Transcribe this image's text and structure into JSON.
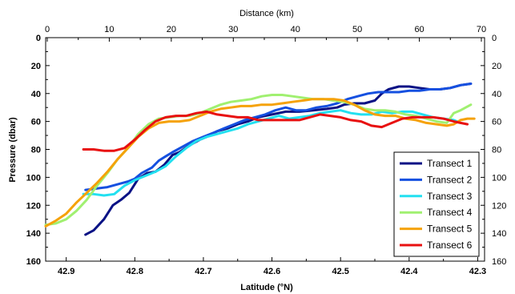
{
  "chart_data": {
    "type": "line",
    "top_axis": {
      "label": "Distance (km)",
      "range": [
        0,
        70
      ],
      "ticks": [
        0,
        10,
        20,
        30,
        40,
        50,
        60,
        70
      ]
    },
    "xlabel": "Latitude (°N)",
    "xlim": [
      42.93,
      42.29
    ],
    "xticks": [
      42.9,
      42.8,
      42.7,
      42.6,
      42.5,
      42.4,
      42.3
    ],
    "ylabel": "Pressure (dbar)",
    "ylim": [
      0,
      160
    ],
    "y_inverted": true,
    "yticks": [
      0,
      20,
      40,
      60,
      80,
      100,
      120,
      140,
      160
    ],
    "right_yticks": [
      0,
      20,
      40,
      60,
      80,
      100,
      120,
      140,
      160
    ],
    "legend_position": "bottom-right",
    "grid": false,
    "series": [
      {
        "name": "Transect 1",
        "color": "#0a1285",
        "x": [
          42.872,
          42.86,
          42.845,
          42.832,
          42.82,
          42.808,
          42.795,
          42.782,
          42.77,
          42.757,
          42.745,
          42.735,
          42.72,
          42.705,
          42.695,
          42.68,
          42.665,
          42.65,
          42.635,
          42.62,
          42.6,
          42.58,
          42.56,
          42.54,
          42.52,
          42.505,
          42.495,
          42.48,
          42.465,
          42.45,
          42.44,
          42.43,
          42.415,
          42.4,
          42.385,
          42.37,
          42.355,
          42.34,
          42.325,
          42.31
        ],
        "y": [
          141,
          138,
          130,
          120,
          116,
          111,
          101,
          97,
          96,
          91,
          84,
          82,
          77,
          73,
          71,
          67,
          65,
          62,
          60,
          57,
          55,
          53,
          53,
          52,
          51,
          50,
          48,
          47,
          47,
          45,
          40,
          37,
          35,
          35,
          36,
          37,
          37,
          36,
          34,
          33
        ]
      },
      {
        "name": "Transect 2",
        "color": "#1550e0",
        "x": [
          42.872,
          42.855,
          42.84,
          42.825,
          42.81,
          42.8,
          42.79,
          42.775,
          42.765,
          42.755,
          42.745,
          42.73,
          42.715,
          42.7,
          42.685,
          42.67,
          42.655,
          42.64,
          42.625,
          42.61,
          42.595,
          42.58,
          42.565,
          42.55,
          42.535,
          42.52,
          42.505,
          42.49,
          42.475,
          42.46,
          42.445,
          42.43,
          42.415,
          42.4,
          42.385,
          42.37,
          42.355,
          42.34,
          42.325,
          42.31
        ],
        "y": [
          109,
          108,
          107,
          105,
          103,
          101,
          97,
          93,
          88,
          85,
          82,
          78,
          74,
          71,
          68,
          65,
          62,
          59,
          57,
          55,
          52,
          50,
          52,
          52,
          50,
          49,
          47,
          44,
          42,
          40,
          39,
          39,
          39,
          38,
          38,
          37,
          37,
          36,
          34,
          33
        ]
      },
      {
        "name": "Transect 3",
        "color": "#22e0f0",
        "x": [
          42.875,
          42.86,
          42.845,
          42.83,
          42.815,
          42.8,
          42.785,
          42.77,
          42.755,
          42.74,
          42.725,
          42.71,
          42.695,
          42.68,
          42.665,
          42.65,
          42.635,
          42.62,
          42.605,
          42.59,
          42.575,
          42.56,
          42.545,
          42.53,
          42.515,
          42.5,
          42.485,
          42.47,
          42.455,
          42.44,
          42.425,
          42.41,
          42.395,
          42.38,
          42.365,
          42.35,
          42.335,
          42.325
        ],
        "y": [
          112,
          112,
          113,
          112,
          106,
          102,
          99,
          96,
          92,
          85,
          79,
          74,
          71,
          69,
          67,
          65,
          62,
          60,
          58,
          56,
          58,
          57,
          56,
          54,
          53,
          52,
          54,
          55,
          55,
          53,
          54,
          53,
          53,
          55,
          57,
          58,
          59,
          61
        ]
      },
      {
        "name": "Transect 4",
        "color": "#a0f070",
        "x": [
          42.93,
          42.915,
          42.9,
          42.885,
          42.87,
          42.855,
          42.84,
          42.825,
          42.81,
          42.795,
          42.78,
          42.765,
          42.75,
          42.735,
          42.72,
          42.705,
          42.69,
          42.675,
          42.66,
          42.645,
          42.63,
          42.615,
          42.6,
          42.585,
          42.57,
          42.555,
          42.54,
          42.525,
          42.51,
          42.495,
          42.48,
          42.465,
          42.45,
          42.435,
          42.42,
          42.405,
          42.39,
          42.375,
          42.36,
          42.345,
          42.335,
          42.325,
          42.31
        ],
        "y": [
          134,
          133,
          130,
          124,
          116,
          106,
          97,
          87,
          79,
          69,
          62,
          58,
          57,
          56,
          56,
          54,
          51,
          48,
          46,
          45,
          44,
          42,
          41,
          41,
          42,
          43,
          44,
          44,
          45,
          46,
          48,
          51,
          52,
          52,
          53,
          55,
          56,
          58,
          60,
          61,
          54,
          52,
          48
        ]
      },
      {
        "name": "Transect 5",
        "color": "#f5a20a",
        "x": [
          42.93,
          42.915,
          42.9,
          42.885,
          42.87,
          42.855,
          42.84,
          42.825,
          42.81,
          42.795,
          42.78,
          42.765,
          42.75,
          42.735,
          42.72,
          42.705,
          42.69,
          42.675,
          42.66,
          42.645,
          42.63,
          42.615,
          42.6,
          42.585,
          42.57,
          42.555,
          42.54,
          42.525,
          42.51,
          42.495,
          42.48,
          42.465,
          42.45,
          42.435,
          42.42,
          42.405,
          42.39,
          42.375,
          42.36,
          42.345,
          42.335,
          42.325,
          42.315,
          42.305
        ],
        "y": [
          135,
          131,
          126,
          118,
          111,
          104,
          96,
          87,
          79,
          71,
          65,
          61,
          60,
          60,
          59,
          56,
          53,
          51,
          50,
          49,
          49,
          48,
          48,
          47,
          46,
          45,
          44,
          44,
          44,
          45,
          48,
          52,
          55,
          56,
          56,
          58,
          59,
          61,
          62,
          63,
          62,
          59,
          58,
          58
        ]
      },
      {
        "name": "Transect 6",
        "color": "#e81010",
        "x": [
          42.875,
          42.86,
          42.845,
          42.83,
          42.815,
          42.8,
          42.785,
          42.77,
          42.755,
          42.74,
          42.725,
          42.71,
          42.695,
          42.68,
          42.665,
          42.65,
          42.635,
          42.62,
          42.605,
          42.59,
          42.575,
          42.56,
          42.545,
          42.53,
          42.515,
          42.5,
          42.485,
          42.47,
          42.455,
          42.44,
          42.425,
          42.41,
          42.395,
          42.38,
          42.365,
          42.35,
          42.335,
          42.325,
          42.315
        ],
        "y": [
          80,
          80,
          81,
          81,
          79,
          73,
          66,
          60,
          57,
          56,
          56,
          54,
          53,
          55,
          56,
          57,
          57,
          59,
          59,
          59,
          59,
          59,
          57,
          55,
          56,
          57,
          59,
          60,
          63,
          64,
          61,
          58,
          57,
          57,
          57,
          58,
          60,
          61,
          62
        ]
      }
    ]
  }
}
